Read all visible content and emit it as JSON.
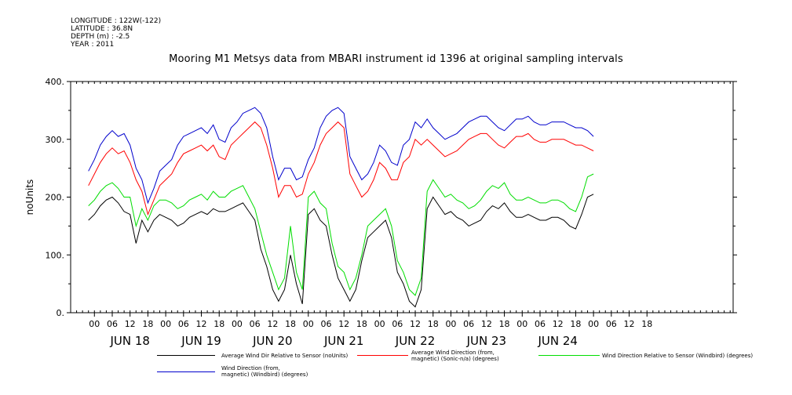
{
  "header": {
    "longitude": "LONGITUDE : 122W(-122)",
    "latitude": "LATITUDE : 36.8N",
    "depth": "DEPTH (m) : -2.5",
    "year": "YEAR : 2011"
  },
  "chart_data": {
    "type": "line",
    "title": "Mooring M1 Metsys data from MBARI instrument id 1396 at original sampling intervals",
    "ylabel": "noUnits",
    "xlabel": "",
    "ylim": [
      0,
      400
    ],
    "yticks": [
      0,
      100,
      200,
      300,
      400
    ],
    "ytick_labels": [
      "0.",
      "100.",
      "200.",
      "300.",
      "400."
    ],
    "xlim_hours": [
      -8,
      215
    ],
    "x_hour_ticks": [
      {
        "h": 0,
        "label": "00"
      },
      {
        "h": 6,
        "label": "06"
      },
      {
        "h": 12,
        "label": "12"
      },
      {
        "h": 18,
        "label": "18"
      },
      {
        "h": 24,
        "label": "00"
      },
      {
        "h": 30,
        "label": "06"
      },
      {
        "h": 36,
        "label": "12"
      },
      {
        "h": 42,
        "label": "18"
      },
      {
        "h": 48,
        "label": "00"
      },
      {
        "h": 54,
        "label": "06"
      },
      {
        "h": 60,
        "label": "12"
      },
      {
        "h": 66,
        "label": "18"
      },
      {
        "h": 72,
        "label": "00"
      },
      {
        "h": 78,
        "label": "06"
      },
      {
        "h": 84,
        "label": "12"
      },
      {
        "h": 90,
        "label": "18"
      },
      {
        "h": 96,
        "label": "00"
      },
      {
        "h": 102,
        "label": "06"
      },
      {
        "h": 108,
        "label": "12"
      },
      {
        "h": 114,
        "label": "18"
      },
      {
        "h": 120,
        "label": "00"
      },
      {
        "h": 126,
        "label": "06"
      },
      {
        "h": 132,
        "label": "12"
      },
      {
        "h": 138,
        "label": "18"
      },
      {
        "h": 144,
        "label": "00"
      },
      {
        "h": 150,
        "label": "06"
      },
      {
        "h": 156,
        "label": "12"
      },
      {
        "h": 162,
        "label": "18"
      },
      {
        "h": 168,
        "label": "00"
      },
      {
        "h": 174,
        "label": "06"
      },
      {
        "h": 180,
        "label": "12"
      },
      {
        "h": 186,
        "label": "18"
      }
    ],
    "day_labels": [
      {
        "h": 12,
        "label": "JUN 18"
      },
      {
        "h": 36,
        "label": "JUN 19"
      },
      {
        "h": 60,
        "label": "JUN 20"
      },
      {
        "h": 84,
        "label": "JUN 21"
      },
      {
        "h": 108,
        "label": "JUN 22"
      },
      {
        "h": 132,
        "label": "JUN 23"
      },
      {
        "h": 156,
        "label": "JUN 24"
      }
    ],
    "x_unit": "hours since JUN 18 00:00 (2011)",
    "series": [
      {
        "name": "Average Wind Dir Relative to Sensor (noUnits)",
        "color": "#000000",
        "x": [
          -2,
          0,
          2,
          4,
          6,
          8,
          10,
          12,
          14,
          16,
          18,
          20,
          22,
          24,
          26,
          28,
          30,
          32,
          34,
          36,
          38,
          40,
          42,
          44,
          46,
          48,
          50,
          52,
          54,
          56,
          58,
          60,
          62,
          64,
          66,
          68,
          70,
          72,
          74,
          76,
          78,
          80,
          82,
          84,
          86,
          88,
          90,
          92,
          94,
          96,
          98,
          100,
          102,
          104,
          106,
          108,
          110,
          112,
          114,
          116,
          118,
          120,
          122,
          124,
          126,
          128,
          130,
          132,
          134,
          136,
          138,
          140,
          142,
          144,
          146,
          148,
          150,
          152,
          154,
          156,
          158,
          160,
          162,
          164,
          166,
          168
        ],
        "y": [
          160,
          170,
          185,
          195,
          200,
          190,
          175,
          170,
          120,
          160,
          140,
          160,
          170,
          165,
          160,
          150,
          155,
          165,
          170,
          175,
          170,
          180,
          175,
          175,
          180,
          185,
          190,
          175,
          160,
          110,
          80,
          40,
          20,
          40,
          100,
          50,
          15,
          170,
          180,
          160,
          150,
          100,
          60,
          40,
          20,
          40,
          90,
          130,
          140,
          150,
          160,
          130,
          70,
          50,
          20,
          10,
          40,
          180,
          200,
          185,
          170,
          175,
          165,
          160,
          150,
          155,
          160,
          175,
          185,
          180,
          190,
          175,
          165,
          165,
          170,
          165,
          160,
          160,
          165,
          165,
          160,
          150,
          145,
          170,
          200,
          205
        ]
      },
      {
        "name": "Average Wind Direction (from, magnetic) (Sonic-n/a) (degrees)",
        "color": "#ff0000",
        "x": [
          -2,
          0,
          2,
          4,
          6,
          8,
          10,
          12,
          14,
          16,
          18,
          20,
          22,
          24,
          26,
          28,
          30,
          32,
          34,
          36,
          38,
          40,
          42,
          44,
          46,
          48,
          50,
          52,
          54,
          56,
          58,
          60,
          62,
          64,
          66,
          68,
          70,
          72,
          74,
          76,
          78,
          80,
          82,
          84,
          86,
          88,
          90,
          92,
          94,
          96,
          98,
          100,
          102,
          104,
          106,
          108,
          110,
          112,
          114,
          116,
          118,
          120,
          122,
          124,
          126,
          128,
          130,
          132,
          134,
          136,
          138,
          140,
          142,
          144,
          146,
          148,
          150,
          152,
          154,
          156,
          158,
          160,
          162,
          164,
          166,
          168
        ],
        "y": [
          220,
          240,
          260,
          275,
          285,
          275,
          280,
          260,
          230,
          210,
          170,
          195,
          220,
          230,
          240,
          260,
          275,
          280,
          285,
          290,
          280,
          290,
          270,
          265,
          290,
          300,
          310,
          320,
          330,
          320,
          290,
          250,
          200,
          220,
          220,
          200,
          205,
          240,
          260,
          290,
          310,
          320,
          330,
          320,
          240,
          220,
          200,
          210,
          230,
          260,
          250,
          230,
          230,
          260,
          270,
          300,
          290,
          300,
          290,
          280,
          270,
          275,
          280,
          290,
          300,
          305,
          310,
          310,
          300,
          290,
          285,
          295,
          305,
          305,
          310,
          300,
          295,
          295,
          300,
          300,
          300,
          295,
          290,
          290,
          285,
          280
        ]
      },
      {
        "name": "Wind Direction Relative to Sensor (Windbird) (degrees)",
        "color": "#00dd00",
        "x": [
          -2,
          0,
          2,
          4,
          6,
          8,
          10,
          12,
          14,
          16,
          18,
          20,
          22,
          24,
          26,
          28,
          30,
          32,
          34,
          36,
          38,
          40,
          42,
          44,
          46,
          48,
          50,
          52,
          54,
          56,
          58,
          60,
          62,
          64,
          66,
          68,
          70,
          72,
          74,
          76,
          78,
          80,
          82,
          84,
          86,
          88,
          90,
          92,
          94,
          96,
          98,
          100,
          102,
          104,
          106,
          108,
          110,
          112,
          114,
          116,
          118,
          120,
          122,
          124,
          126,
          128,
          130,
          132,
          134,
          136,
          138,
          140,
          142,
          144,
          146,
          148,
          150,
          152,
          154,
          156,
          158,
          160,
          162,
          164,
          166,
          168
        ],
        "y": [
          185,
          195,
          210,
          220,
          225,
          215,
          200,
          200,
          150,
          180,
          160,
          185,
          195,
          195,
          190,
          180,
          185,
          195,
          200,
          205,
          195,
          210,
          200,
          200,
          210,
          215,
          220,
          200,
          180,
          140,
          100,
          70,
          40,
          60,
          150,
          70,
          40,
          200,
          210,
          190,
          180,
          120,
          80,
          70,
          40,
          60,
          100,
          150,
          160,
          170,
          180,
          150,
          90,
          70,
          40,
          30,
          60,
          210,
          230,
          215,
          200,
          205,
          195,
          190,
          180,
          185,
          195,
          210,
          220,
          215,
          225,
          205,
          195,
          195,
          200,
          195,
          190,
          190,
          195,
          195,
          190,
          180,
          175,
          200,
          235,
          240
        ]
      },
      {
        "name": "Wind Direction (from, magnetic) (Windbird) (degrees)",
        "color": "#0000cc",
        "x": [
          -2,
          0,
          2,
          4,
          6,
          8,
          10,
          12,
          14,
          16,
          18,
          20,
          22,
          24,
          26,
          28,
          30,
          32,
          34,
          36,
          38,
          40,
          42,
          44,
          46,
          48,
          50,
          52,
          54,
          56,
          58,
          60,
          62,
          64,
          66,
          68,
          70,
          72,
          74,
          76,
          78,
          80,
          82,
          84,
          86,
          88,
          90,
          92,
          94,
          96,
          98,
          100,
          102,
          104,
          106,
          108,
          110,
          112,
          114,
          116,
          118,
          120,
          122,
          124,
          126,
          128,
          130,
          132,
          134,
          136,
          138,
          140,
          142,
          144,
          146,
          148,
          150,
          152,
          154,
          156,
          158,
          160,
          162,
          164,
          166,
          168
        ],
        "y": [
          245,
          265,
          290,
          305,
          315,
          305,
          310,
          290,
          250,
          230,
          190,
          215,
          245,
          255,
          265,
          290,
          305,
          310,
          315,
          320,
          310,
          325,
          300,
          295,
          320,
          330,
          345,
          350,
          355,
          345,
          320,
          270,
          230,
          250,
          250,
          230,
          235,
          265,
          285,
          320,
          340,
          350,
          355,
          345,
          270,
          250,
          230,
          240,
          260,
          290,
          280,
          260,
          255,
          290,
          300,
          330,
          320,
          335,
          320,
          310,
          300,
          305,
          310,
          320,
          330,
          335,
          340,
          340,
          330,
          320,
          315,
          325,
          335,
          335,
          340,
          330,
          325,
          325,
          330,
          330,
          330,
          325,
          320,
          320,
          315,
          305
        ]
      }
    ],
    "legend": [
      {
        "label": "Average Wind Dir Relative to Sensor (noUnits)",
        "color": "#000000"
      },
      {
        "label": "Average Wind Direction (from,\nmagnetic) (Sonic-n/a) (degrees)",
        "color": "#ff0000"
      },
      {
        "label": "Wind Direction Relative to Sensor (Windbird) (degrees)",
        "color": "#00dd00"
      },
      {
        "label": "Wind Direction (from,\nmagnetic) (Windbird) (degrees)",
        "color": "#0000cc"
      }
    ]
  }
}
